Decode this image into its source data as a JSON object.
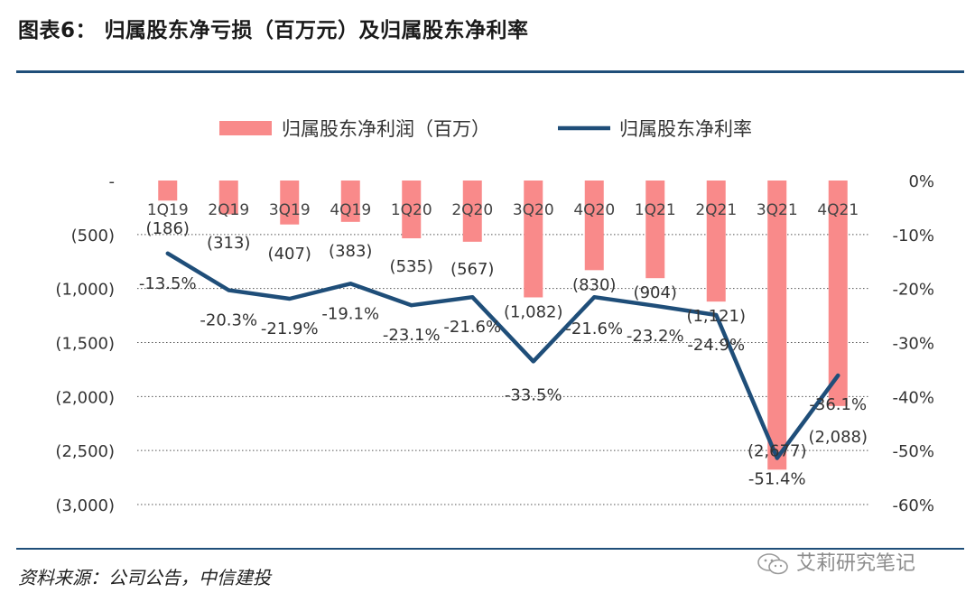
{
  "header": {
    "title": "图表6： 归属股东净亏损（百万元）及归属股东净利率"
  },
  "footer": {
    "source": "资料来源：公司公告，中信建投",
    "watermark": "艾莉研究笔记"
  },
  "colors": {
    "bar": "#f98a8a",
    "line": "#1f4e79",
    "rule": "#1f4e79",
    "grid": "#555555"
  },
  "chart_data": {
    "type": "bar",
    "categories": [
      "1Q19",
      "2Q19",
      "3Q19",
      "4Q19",
      "1Q20",
      "2Q20",
      "3Q20",
      "4Q20",
      "1Q21",
      "2Q21",
      "3Q21",
      "4Q21"
    ],
    "series": [
      {
        "name": "归属股东净利润（百万）",
        "type": "bar",
        "axis": "left",
        "values": [
          -186,
          -313,
          -407,
          -383,
          -535,
          -567,
          -1082,
          -830,
          -904,
          -1121,
          -2677,
          -2088
        ],
        "labels": [
          "(186)",
          "(313)",
          "(407)",
          "(383)",
          "(535)",
          "(567)",
          "(1,082)",
          "(830)",
          "(904)",
          "(1,121)",
          "(2,677)",
          "(2,088)"
        ]
      },
      {
        "name": "归属股东净利率",
        "type": "line",
        "axis": "right",
        "values": [
          -13.5,
          -20.3,
          -21.9,
          -19.1,
          -23.1,
          -21.6,
          -33.5,
          -21.6,
          -23.2,
          -24.9,
          -51.4,
          -36.1
        ],
        "labels": [
          "-13.5%",
          "-20.3%",
          "-21.9%",
          "-19.1%",
          "-23.1%",
          "-21.6%",
          "-33.5%",
          "-21.6%",
          "-23.2%",
          "-24.9%",
          "-51.4%",
          "-36.1%"
        ]
      }
    ],
    "y_left": {
      "ylim": [
        -3000,
        0
      ],
      "ticks": [
        0,
        -500,
        -1000,
        -1500,
        -2000,
        -2500,
        -3000
      ],
      "tick_labels": [
        "-",
        "(500)",
        "(1,000)",
        "(1,500)",
        "(2,000)",
        "(2,500)",
        "(3,000)"
      ]
    },
    "y_right": {
      "ylim": [
        -60,
        0
      ],
      "ticks": [
        0,
        -10,
        -20,
        -30,
        -40,
        -50,
        -60
      ],
      "tick_labels": [
        "0%",
        "-10%",
        "-20%",
        "-30%",
        "-40%",
        "-50%",
        "-60%"
      ]
    },
    "grid": "horizontal dotted",
    "legend": "top-center"
  }
}
